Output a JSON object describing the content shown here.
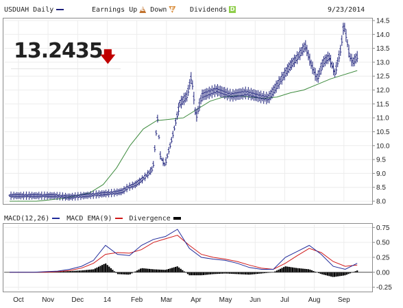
{
  "header": {
    "symbol_label": "USDUAH Daily",
    "earnings_label": "Earnings",
    "up_label": "Up",
    "down_label": "Down",
    "dividends_label": "Dividends",
    "date": "9/23/2014",
    "up_badge_glyph": "E",
    "down_badge_glyph": "E",
    "dividends_badge_glyph": "D"
  },
  "price": {
    "last": "13.2435",
    "direction_icon": "down-arrow-icon"
  },
  "macd_legend": {
    "macd_label": "MACD(12,26)",
    "ema_label": "MACD EMA(9)",
    "divergence_label": "Divergence"
  },
  "colors": {
    "price_bars": "#1b1f7a",
    "moving_average": "#3c8a3c",
    "macd_line": "#1f2a9a",
    "ema_line": "#d01818",
    "divergence": "#000000",
    "down_arrow": "#c00000",
    "up_badge": "#c0702a",
    "down_badge": "#d98c3a",
    "dividends_badge": "#8fce4a"
  },
  "chart_data": [
    {
      "type": "ohlc",
      "title": "USDUAH Daily",
      "y_ticks": [
        "14.5",
        "14.0",
        "13.5",
        "13.0",
        "12.5",
        "12.0",
        "11.5",
        "11.0",
        "10.5",
        "10.0",
        "9.5",
        "9.0",
        "8.5",
        "8.0"
      ],
      "ylim": [
        8.0,
        14.5
      ],
      "x_ticks": [
        "Oct",
        "Nov",
        "Dec",
        "14",
        "Feb",
        "Mar",
        "Apr",
        "May",
        "Jun",
        "Jul",
        "Aug",
        "Sep"
      ],
      "series": [
        {
          "type": "ohlc",
          "x": [
            0.0,
            0.5,
            1.0,
            1.5,
            2.0,
            2.5,
            3.0,
            3.5,
            3.8,
            4.0,
            4.25,
            4.5,
            4.7,
            4.85,
            5.0,
            5.1,
            5.25,
            5.5,
            5.75,
            6.0,
            6.15,
            6.3,
            6.5,
            6.75,
            7.0,
            7.5,
            8.0,
            8.5,
            8.75,
            9.0,
            9.25,
            9.5,
            9.75,
            10.0,
            10.2,
            10.4,
            10.6,
            10.8,
            11.0,
            11.2,
            11.3,
            11.5,
            11.6,
            11.75
          ],
          "values": [
            8.2,
            8.2,
            8.2,
            8.2,
            8.15,
            8.2,
            8.25,
            8.3,
            8.35,
            8.5,
            8.6,
            8.8,
            9.0,
            9.2,
            11.0,
            9.6,
            9.3,
            10.3,
            11.5,
            11.8,
            12.5,
            11.0,
            11.8,
            11.9,
            12.0,
            11.8,
            11.9,
            11.75,
            11.7,
            12.1,
            12.5,
            12.9,
            13.2,
            13.6,
            12.9,
            12.4,
            13.0,
            13.2,
            12.6,
            13.5,
            14.4,
            13.2,
            13.0,
            13.2
          ]
        },
        {
          "type": "line",
          "values": [
            8.0,
            8.0,
            8.0,
            8.05,
            8.1,
            8.2,
            8.3,
            8.6,
            9.2,
            10.0,
            10.6,
            10.9,
            10.95,
            11.0,
            11.3,
            11.6,
            11.75,
            11.8,
            11.75,
            11.7,
            11.75,
            11.9,
            12.0,
            12.2,
            12.4,
            12.55,
            12.7
          ]
        }
      ]
    },
    {
      "type": "line",
      "title": "MACD(12,26)",
      "y_ticks": [
        "0.75",
        "0.50",
        "0.25",
        "0.00",
        "-0.25"
      ],
      "ylim": [
        -0.3,
        0.8
      ],
      "series": [
        {
          "name": "MACD(12,26)",
          "values": [
            0.0,
            0.0,
            0.0,
            0.01,
            0.02,
            0.05,
            0.1,
            0.2,
            0.45,
            0.3,
            0.28,
            0.45,
            0.55,
            0.6,
            0.72,
            0.4,
            0.25,
            0.22,
            0.2,
            0.15,
            0.08,
            0.05,
            0.05,
            0.25,
            0.35,
            0.45,
            0.3,
            0.1,
            0.05,
            0.15
          ]
        },
        {
          "name": "MACD EMA(9)",
          "values": [
            0.0,
            0.0,
            0.0,
            0.0,
            0.01,
            0.03,
            0.07,
            0.15,
            0.3,
            0.33,
            0.32,
            0.38,
            0.5,
            0.56,
            0.62,
            0.45,
            0.3,
            0.25,
            0.22,
            0.18,
            0.12,
            0.07,
            0.05,
            0.15,
            0.28,
            0.4,
            0.33,
            0.18,
            0.1,
            0.12
          ]
        },
        {
          "name": "Divergence",
          "type": "bar",
          "values": [
            0.0,
            0.0,
            0.0,
            0.01,
            0.01,
            0.02,
            0.03,
            0.05,
            0.15,
            -0.03,
            -0.04,
            0.07,
            0.05,
            0.04,
            0.1,
            -0.05,
            -0.05,
            -0.03,
            -0.02,
            -0.03,
            -0.04,
            -0.02,
            0.0,
            0.1,
            0.07,
            0.05,
            -0.03,
            -0.08,
            -0.05,
            0.03
          ]
        }
      ]
    }
  ]
}
